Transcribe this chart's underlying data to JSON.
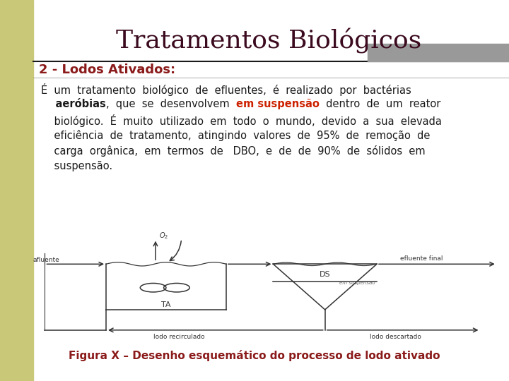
{
  "title": "Tratamentos Biológicos",
  "title_color": "#3b0a1e",
  "title_fontsize": 26,
  "subtitle": "2 - Lodos Ativados:",
  "subtitle_color": "#8b1a1a",
  "subtitle_fontsize": 13,
  "caption": "Figura X – Desenho esquemático do processo de lodo ativado",
  "caption_color": "#8b1a1a",
  "caption_fontsize": 11,
  "bg_color": "#ffffff",
  "sidebar_color": "#c8c878",
  "em_suspensao_color": "#cc2200",
  "body_fontsize": 10.5,
  "body_color": "#1a1a1a",
  "line_color": "#333333",
  "gray_rect_color": "#999999"
}
